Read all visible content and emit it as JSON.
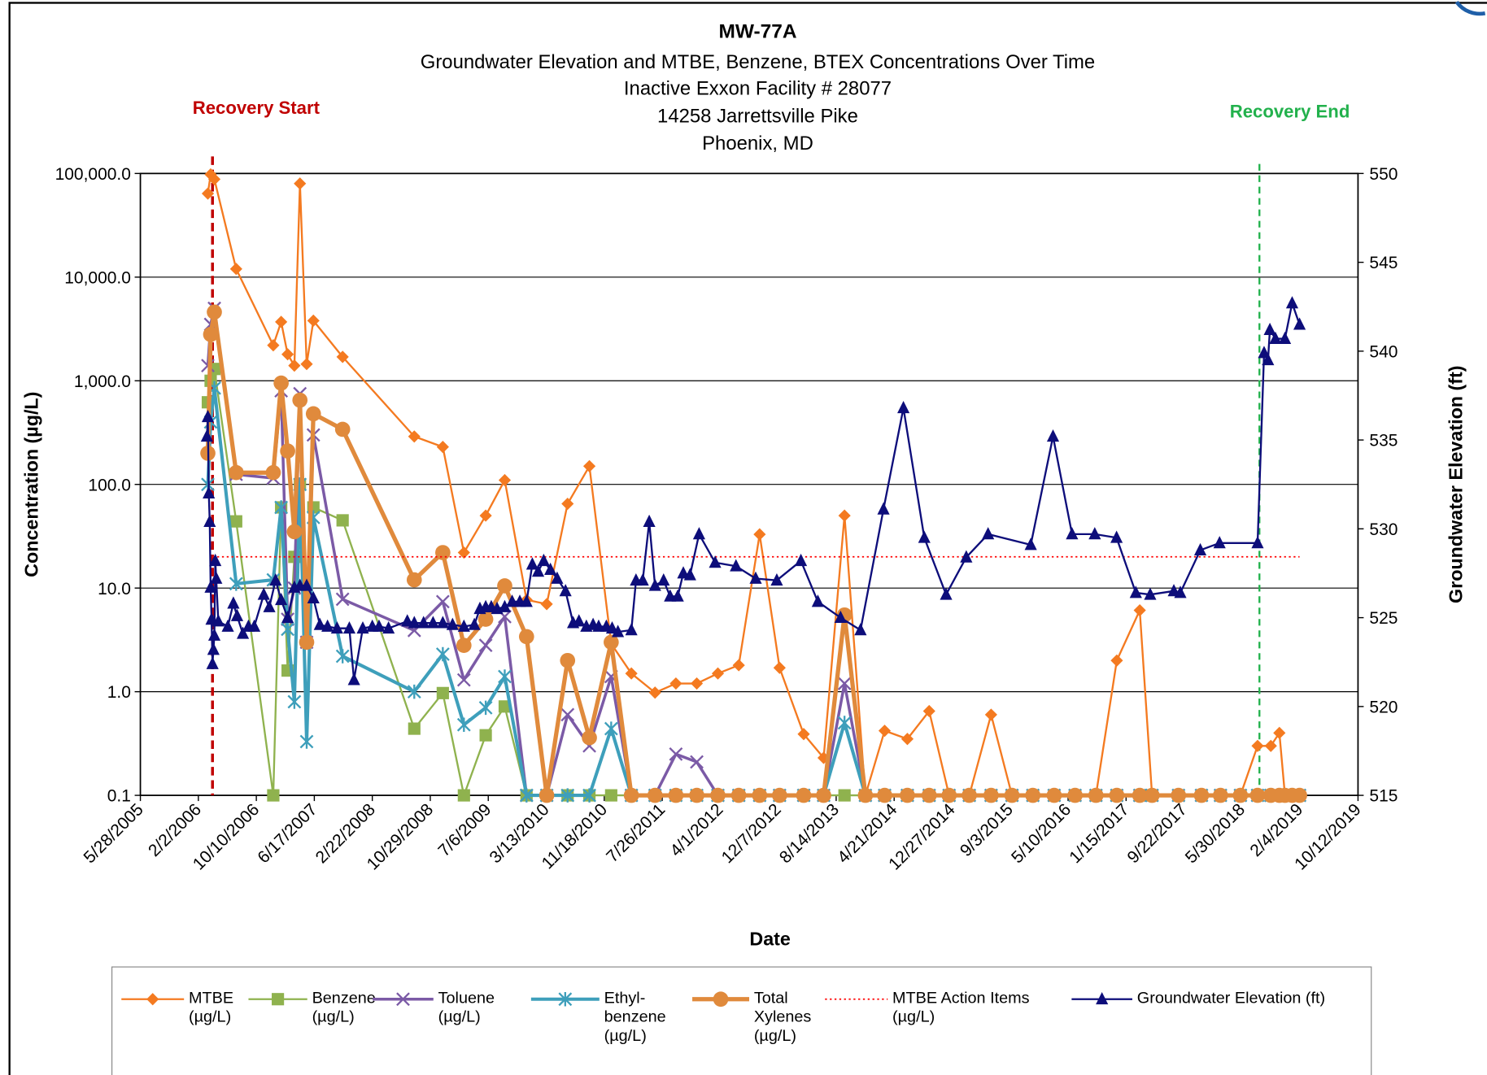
{
  "chart_data": {
    "type": "line",
    "title": "MW-77A",
    "subtitle": [
      "Groundwater Elevation and MTBE, Benzene, BTEX Concentrations Over Time",
      "Inactive Exxon Facility # 28077",
      "14258 Jarrettsville Pike",
      "Phoenix, MD"
    ],
    "x_label": "Date",
    "y_label": "Concentration (µg/L)",
    "y2_label": "Groundwater Elevation (ft)",
    "ylog": true,
    "grid": true,
    "legend": "bottom",
    "xlim": [
      "5/28/2005",
      "10/12/2019"
    ],
    "xticks": [
      "5/28/2005",
      "2/2/2006",
      "10/10/2006",
      "6/17/2007",
      "2/22/2008",
      "10/29/2008",
      "7/6/2009",
      "3/13/2010",
      "11/18/2010",
      "7/26/2011",
      "4/1/2012",
      "12/7/2012",
      "8/14/2013",
      "4/21/2014",
      "12/27/2014",
      "9/3/2015",
      "5/10/2016",
      "1/15/2017",
      "9/22/2017",
      "5/30/2018",
      "2/4/2019",
      "10/12/2019"
    ],
    "ylim": [
      0.1,
      100000
    ],
    "yticks": [
      {
        "value": 100000,
        "label": "100,000.0"
      },
      {
        "value": 10000,
        "label": "10,000.0"
      },
      {
        "value": 1000,
        "label": "1,000.0"
      },
      {
        "value": 100,
        "label": "100.0"
      },
      {
        "value": 10,
        "label": "10.0"
      },
      {
        "value": 1,
        "label": "1.0"
      },
      0.1
    ],
    "y2lim": [
      515,
      550
    ],
    "y2ticks": [
      515,
      520,
      525,
      530,
      535,
      540,
      545,
      550
    ],
    "annotations": [
      {
        "text": "Recovery Start",
        "date": "4/4/2006",
        "color": "#c00000"
      },
      {
        "text": "Recovery End",
        "date": "8/13/2018",
        "color": "#22b14c"
      }
    ],
    "x": [
      "3/15/2006",
      "3/27/2006",
      "4/12/2006",
      "7/15/2006",
      "12/22/2006",
      "1/25/2007",
      "2/22/2007",
      "3/23/2007",
      "4/16/2007",
      "5/15/2007",
      "6/13/2007",
      "10/17/2007",
      "8/21/2008",
      "12/22/2008",
      "3/23/2009",
      "6/25/2009",
      "9/15/2009",
      "12/18/2009",
      "3/15/2010",
      "6/13/2010",
      "9/15/2010",
      "12/18/2010",
      "3/15/2011",
      "6/25/2011",
      "9/23/2011",
      "12/22/2011",
      "3/22/2012",
      "6/20/2012",
      "9/18/2012",
      "12/13/2012",
      "3/27/2013",
      "6/21/2013",
      "9/19/2013",
      "12/18/2013",
      "3/11/2014",
      "6/17/2014",
      "9/19/2014",
      "12/14/2014",
      "3/11/2015",
      "6/13/2015",
      "9/11/2015",
      "12/10/2015",
      "3/11/2016",
      "6/9/2016",
      "9/7/2016",
      "12/6/2016",
      "3/15/2017",
      "5/7/2017",
      "8/29/2017",
      "12/6/2017",
      "2/26/2018",
      "5/23/2018",
      "8/5/2018",
      "10/1/2018",
      "11/7/2018",
      "12/1/2018",
      "1/1/2019",
      "2/2/2019"
    ],
    "series": [
      {
        "name": "MTBE (µg/L)",
        "color": "#f47a20",
        "marker": "diamond",
        "line_width": 2,
        "values": [
          64000,
          98000,
          88000,
          12000,
          2200,
          3700,
          1800,
          1400,
          80000,
          1450,
          3800,
          1700,
          290,
          230,
          22,
          50,
          110,
          7.7,
          7,
          65,
          150,
          2.9,
          1.5,
          0.98,
          1.2,
          1.2,
          1.5,
          1.8,
          33,
          1.7,
          0.39,
          0.23,
          50,
          0.1,
          0.42,
          0.35,
          0.65,
          0.1,
          0.1,
          0.6,
          0.1,
          0.1,
          0.1,
          0.1,
          0.1,
          2.0,
          6.1,
          0.1,
          0.1,
          0.1,
          0.1,
          0.1,
          0.3,
          0.3,
          0.4,
          0.1,
          0.1,
          0.1
        ]
      },
      {
        "name": "Benzene (µg/L)",
        "color": "#8fb24e",
        "marker": "square",
        "line_width": 2,
        "values": [
          620,
          1000,
          1300,
          44,
          0.1,
          60,
          1.6,
          20,
          100,
          3,
          60,
          45,
          0.44,
          0.97,
          0.1,
          0.38,
          0.72,
          0.1,
          0.1,
          0.1,
          0.1,
          0.1,
          0.1,
          0.1,
          0.1,
          0.1,
          0.1,
          0.1,
          0.1,
          0.1,
          0.1,
          0.1,
          0.1,
          0.1,
          0.1,
          0.1,
          0.1,
          0.1,
          0.1,
          0.1,
          0.1,
          0.1,
          0.1,
          0.1,
          0.1,
          0.1,
          0.1,
          0.1,
          0.1,
          0.1,
          0.1,
          0.1,
          0.1,
          0.1,
          0.1,
          0.1,
          0.1,
          0.1
        ]
      },
      {
        "name": "Toluene (µg/L)",
        "color": "#7b5aa6",
        "marker": "x",
        "line_width": 3,
        "values": [
          1400,
          3500,
          5000,
          125,
          115,
          800,
          5,
          10,
          750,
          3,
          300,
          7.8,
          3.9,
          7.4,
          1.3,
          2.8,
          5.3,
          0.1,
          0.1,
          0.6,
          0.3,
          1.4,
          0.1,
          0.1,
          0.25,
          0.21,
          0.1,
          0.1,
          0.1,
          0.1,
          0.1,
          0.1,
          1.2,
          0.1,
          0.1,
          0.1,
          0.1,
          0.1,
          0.1,
          0.1,
          0.1,
          0.1,
          0.1,
          0.1,
          0.1,
          0.1,
          0.1,
          0.1,
          0.1,
          0.1,
          0.1,
          0.1,
          0.1,
          0.1,
          0.1,
          0.1,
          0.1,
          0.1
        ]
      },
      {
        "name": "Ethyl-benzene (µg/L)",
        "color": "#3e9fbb",
        "marker": "star",
        "line_width": 3.5,
        "values": [
          100,
          400,
          850,
          11,
          12,
          60,
          4,
          0.8,
          100,
          0.33,
          48,
          2.2,
          1.0,
          2.3,
          0.48,
          0.7,
          1.4,
          0.1,
          0.1,
          0.1,
          0.1,
          0.44,
          0.1,
          0.1,
          0.1,
          0.1,
          0.1,
          0.1,
          0.1,
          0.1,
          0.1,
          0.1,
          0.5,
          0.1,
          0.1,
          0.1,
          0.1,
          0.1,
          0.1,
          0.1,
          0.1,
          0.1,
          0.1,
          0.1,
          0.1,
          0.1,
          0.1,
          0.1,
          0.1,
          0.1,
          0.1,
          0.1,
          0.1,
          0.1,
          0.1,
          0.1,
          0.1,
          0.1
        ]
      },
      {
        "name": "Total Xylenes (µg/L)",
        "color": "#e08a3c",
        "marker": "circle",
        "line_width": 4.5,
        "values": [
          200,
          2800,
          4600,
          130,
          130,
          950,
          210,
          35,
          650,
          3.0,
          480,
          340,
          12,
          22,
          2.8,
          5,
          10.5,
          3.4,
          0.1,
          2.0,
          0.36,
          3.0,
          0.1,
          0.1,
          0.1,
          0.1,
          0.1,
          0.1,
          0.1,
          0.1,
          0.1,
          0.1,
          5.5,
          0.1,
          0.1,
          0.1,
          0.1,
          0.1,
          0.1,
          0.1,
          0.1,
          0.1,
          0.1,
          0.1,
          0.1,
          0.1,
          0.1,
          0.1,
          0.1,
          0.1,
          0.1,
          0.1,
          0.1,
          0.1,
          0.1,
          0.1,
          0.1,
          0.1
        ]
      },
      {
        "name": "MTBE Action Items (µg/L)",
        "color": "#ff0000",
        "marker": "none",
        "line_width": 1.5,
        "dash": "dotted",
        "x": [
          "4/4/2006",
          "2/2/2019"
        ],
        "values": [
          20,
          20
        ]
      },
      {
        "name": "Groundwater Elevation (ft)",
        "color": "#0d0d7a",
        "marker": "triangle",
        "line_width": 2,
        "axis": "y2",
        "x": [
          "3/11/2006",
          "3/15/2006",
          "3/19/2006",
          "3/23/2006",
          "3/27/2006",
          "3/31/2006",
          "4/4/2006",
          "4/8/2006",
          "4/12/2006",
          "4/16/2006",
          "4/20/2006",
          "4/29/2006",
          "6/9/2006",
          "7/3/2006",
          "7/19/2006",
          "8/13/2006",
          "9/6/2006",
          "10/1/2006",
          "11/11/2006",
          "12/5/2006",
          "1/1/2007",
          "1/25/2007",
          "2/22/2007",
          "3/23/2007",
          "4/16/2007",
          "5/15/2007",
          "6/13/2007",
          "7/11/2007",
          "8/13/2007",
          "9/23/2007",
          "11/15/2007",
          "12/5/2007",
          "1/12/2008",
          "2/22/2008",
          "3/22/2008",
          "5/2/2008",
          "7/22/2008",
          "8/21/2008",
          "9/30/2008",
          "11/10/2008",
          "12/22/2008",
          "2/2/2009",
          "3/23/2009",
          "5/7/2009",
          "5/31/2009",
          "6/25/2009",
          "7/19/2009",
          "8/13/2009",
          "9/15/2009",
          "10/17/2009",
          "11/19/2009",
          "12/18/2009",
          "1/12/2010",
          "2/6/2010",
          "3/2/2010",
          "3/31/2010",
          "4/29/2010",
          "6/4/2010",
          "7/7/2010",
          "8/1/2010",
          "9/2/2010",
          "10/1/2010",
          "10/25/2010",
          "11/27/2010",
          "12/22/2010",
          "1/16/2011",
          "3/15/2011",
          "4/4/2011",
          "5/3/2011",
          "5/31/2011",
          "6/25/2011",
          "8/1/2011",
          "8/29/2011",
          "10/1/2011",
          "10/25/2011",
          "11/23/2011",
          "1/1/2012",
          "3/10/2012",
          "6/8/2012",
          "9/1/2012",
          "12/1/2012",
          "3/15/2013",
          "5/27/2013",
          "9/2/2013",
          "11/27/2013",
          "3/6/2014",
          "5/31/2014",
          "8/29/2014",
          "12/1/2014",
          "2/26/2015",
          "5/31/2015",
          "12/1/2015",
          "3/6/2016",
          "5/27/2016",
          "9/2/2016",
          "12/5/2016",
          "2/26/2017",
          "4/29/2017",
          "8/9/2017",
          "9/6/2017",
          "12/1/2017",
          "2/22/2018",
          "8/5/2018",
          "9/2/2018",
          "9/19/2018",
          "9/27/2018",
          "10/21/2018",
          "12/1/2018",
          "1/1/2019",
          "2/2/2019"
        ],
        "values": [
          535.2,
          536.3,
          532.0,
          530.4,
          526.7,
          524.9,
          522.4,
          523.2,
          524.0,
          528.2,
          527.2,
          524.8,
          524.5,
          525.8,
          525.1,
          524.1,
          524.5,
          524.5,
          526.3,
          525.6,
          527.1,
          526.0,
          525.0,
          526.7,
          526.8,
          526.8,
          526.1,
          524.6,
          524.5,
          524.4,
          524.4,
          521.5,
          524.4,
          524.5,
          524.5,
          524.4,
          524.8,
          524.7,
          524.7,
          524.7,
          524.7,
          524.6,
          524.5,
          524.6,
          525.5,
          525.6,
          525.6,
          525.5,
          525.6,
          525.9,
          525.9,
          525.9,
          528.0,
          527.6,
          528.2,
          527.7,
          527.2,
          526.5,
          524.7,
          524.8,
          524.5,
          524.6,
          524.5,
          524.5,
          524.4,
          524.2,
          524.3,
          527.1,
          527.1,
          530.4,
          526.8,
          527.1,
          526.2,
          526.2,
          527.5,
          527.4,
          529.7,
          528.1,
          527.9,
          527.2,
          527.1,
          528.2,
          525.9,
          525.0,
          524.3,
          531.1,
          536.8,
          529.5,
          526.3,
          528.4,
          529.7,
          529.1,
          535.2,
          529.7,
          529.7,
          529.5,
          526.4,
          526.3,
          526.5,
          526.4,
          528.8,
          529.2,
          529.2,
          539.9,
          539.5,
          541.2,
          540.7,
          540.7,
          542.7,
          541.5
        ]
      }
    ]
  }
}
